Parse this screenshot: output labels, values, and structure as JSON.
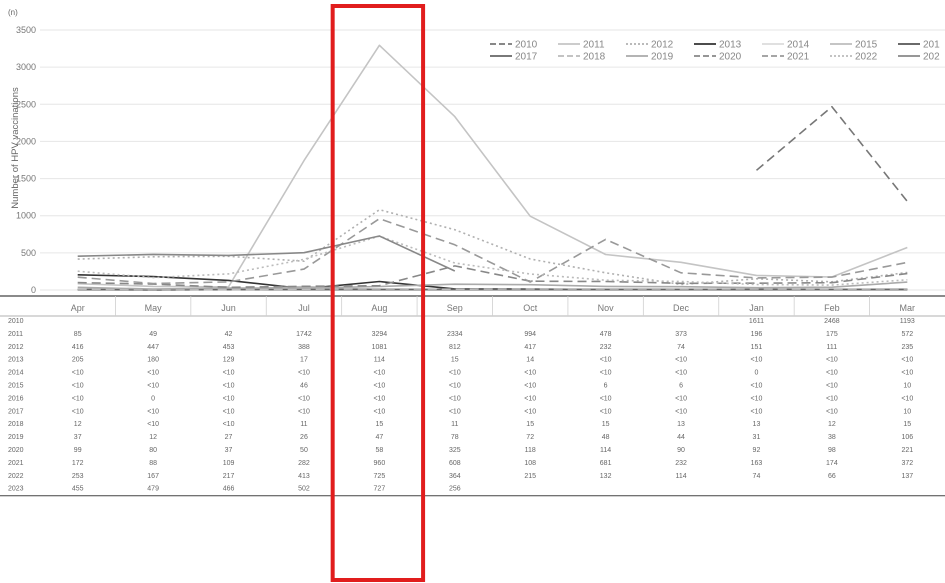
{
  "chart_data": {
    "type": "line",
    "unit_label": "(n)",
    "ylabel": "Number of HPV vaccinations",
    "ylim": [
      0,
      3500
    ],
    "yticks": [
      0,
      500,
      1000,
      1500,
      2000,
      2500,
      3000,
      3500
    ],
    "grid": true,
    "legend_position": "top-right",
    "categories": [
      "Apr",
      "May",
      "Jun",
      "Jul",
      "Aug",
      "Sep",
      "Oct",
      "Nov",
      "Dec",
      "Jan",
      "Feb",
      "Mar"
    ],
    "highlight": {
      "category": "Aug",
      "color": "#e11d1d"
    },
    "series": [
      {
        "name": "2010",
        "style": "dash",
        "color": "#777777",
        "table": [
          "",
          "",
          "",
          "",
          "",
          "",
          "",
          "",
          "",
          "1611",
          "2468",
          "1193"
        ],
        "values": [
          null,
          null,
          null,
          null,
          null,
          null,
          null,
          null,
          null,
          1611,
          2468,
          1193
        ]
      },
      {
        "name": "2011",
        "style": "solid",
        "color": "#c4c4c4",
        "table": [
          "85",
          "49",
          "42",
          "1742",
          "3294",
          "2334",
          "994",
          "478",
          "373",
          "196",
          "175",
          "572"
        ],
        "values": [
          85,
          49,
          42,
          1742,
          3294,
          2334,
          994,
          478,
          373,
          196,
          175,
          572
        ]
      },
      {
        "name": "2012",
        "style": "dot",
        "color": "#b0b0b0",
        "table": [
          "416",
          "447",
          "453",
          "388",
          "1081",
          "812",
          "417",
          "232",
          "74",
          "151",
          "111",
          "235"
        ],
        "values": [
          416,
          447,
          453,
          388,
          1081,
          812,
          417,
          232,
          74,
          151,
          111,
          235
        ]
      },
      {
        "name": "2013",
        "style": "solid",
        "color": "#333333",
        "table": [
          "205",
          "180",
          "129",
          "17",
          "114",
          "15",
          "14",
          "<10",
          "<10",
          "<10",
          "<10",
          "<10"
        ],
        "values": [
          205,
          180,
          129,
          17,
          114,
          15,
          14,
          5,
          5,
          5,
          5,
          5
        ]
      },
      {
        "name": "2014",
        "style": "solid",
        "color": "#dcdcdc",
        "table": [
          "<10",
          "<10",
          "<10",
          "<10",
          "<10",
          "<10",
          "<10",
          "<10",
          "<10",
          "0",
          "<10",
          "<10"
        ],
        "values": [
          5,
          5,
          5,
          5,
          5,
          5,
          5,
          5,
          5,
          0,
          5,
          5
        ]
      },
      {
        "name": "2015",
        "style": "solid",
        "color": "#bdbdbd",
        "table": [
          "<10",
          "<10",
          "<10",
          "46",
          "<10",
          "<10",
          "<10",
          "6",
          "6",
          "<10",
          "<10",
          "10"
        ],
        "values": [
          5,
          5,
          5,
          46,
          5,
          5,
          5,
          6,
          6,
          5,
          5,
          10
        ]
      },
      {
        "name": "2016",
        "style": "solid",
        "color": "#555555",
        "table": [
          "<10",
          "0",
          "<10",
          "<10",
          "<10",
          "<10",
          "<10",
          "<10",
          "<10",
          "<10",
          "<10",
          "<10"
        ],
        "values": [
          5,
          0,
          5,
          5,
          5,
          5,
          5,
          5,
          5,
          5,
          5,
          5
        ]
      },
      {
        "name": "2017",
        "style": "solid",
        "color": "#666666",
        "table": [
          "<10",
          "<10",
          "<10",
          "<10",
          "<10",
          "<10",
          "<10",
          "<10",
          "<10",
          "<10",
          "<10",
          "10"
        ],
        "values": [
          5,
          5,
          5,
          5,
          5,
          5,
          5,
          5,
          5,
          5,
          5,
          10
        ]
      },
      {
        "name": "2018",
        "style": "dash",
        "color": "#bbbbbb",
        "table": [
          "12",
          "<10",
          "<10",
          "11",
          "15",
          "11",
          "15",
          "15",
          "13",
          "13",
          "12",
          "15"
        ],
        "values": [
          12,
          5,
          5,
          11,
          15,
          11,
          15,
          15,
          13,
          13,
          12,
          15
        ]
      },
      {
        "name": "2019",
        "style": "solid",
        "color": "#aaaaaa",
        "table": [
          "37",
          "12",
          "27",
          "26",
          "47",
          "78",
          "72",
          "48",
          "44",
          "31",
          "38",
          "106"
        ],
        "values": [
          37,
          12,
          27,
          26,
          47,
          78,
          72,
          48,
          44,
          31,
          38,
          106
        ]
      },
      {
        "name": "2020",
        "style": "dash",
        "color": "#888888",
        "table": [
          "99",
          "80",
          "37",
          "50",
          "58",
          "325",
          "118",
          "114",
          "90",
          "92",
          "98",
          "221"
        ],
        "values": [
          99,
          80,
          37,
          50,
          58,
          325,
          118,
          114,
          90,
          92,
          98,
          221
        ]
      },
      {
        "name": "2021",
        "style": "dash",
        "color": "#999999",
        "table": [
          "172",
          "88",
          "109",
          "282",
          "960",
          "608",
          "108",
          "681",
          "232",
          "163",
          "174",
          "372"
        ],
        "values": [
          172,
          88,
          109,
          282,
          960,
          608,
          108,
          681,
          232,
          163,
          174,
          372
        ]
      },
      {
        "name": "2022",
        "style": "dot",
        "color": "#bbbbbb",
        "table": [
          "253",
          "167",
          "217",
          "413",
          "725",
          "364",
          "215",
          "132",
          "114",
          "74",
          "66",
          "137"
        ],
        "values": [
          253,
          167,
          217,
          413,
          725,
          364,
          215,
          132,
          114,
          74,
          66,
          137
        ]
      },
      {
        "name": "2023",
        "style": "solid",
        "color": "#888888",
        "table": [
          "455",
          "479",
          "466",
          "502",
          "727",
          "256",
          "",
          "",
          "",
          "",
          "",
          ""
        ],
        "values": [
          455,
          479,
          466,
          502,
          727,
          256,
          null,
          null,
          null,
          null,
          null,
          null
        ]
      }
    ],
    "legend_labels": [
      "2010",
      "2011",
      "2012",
      "2013",
      "2014",
      "2015",
      "201",
      "2017",
      "2018",
      "2019",
      "2020",
      "2021",
      "2022",
      "202"
    ]
  }
}
